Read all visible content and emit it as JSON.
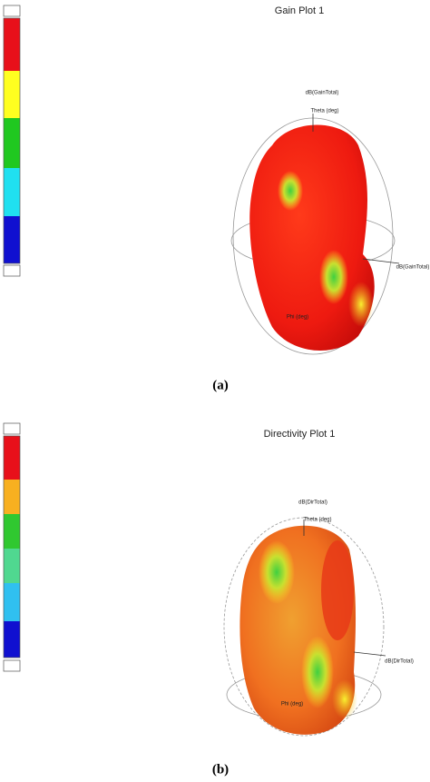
{
  "figures": [
    {
      "title": "Gain Plot 1",
      "quantity_label": "dB(GainTotal)",
      "theta_label": "Theta (deg)",
      "phi_label": "Phi (deg)",
      "caption": "(a)"
    },
    {
      "title": "Directivity Plot 1",
      "quantity_label": "dB(DirTotal)",
      "theta_label": "Theta (deg)",
      "phi_label": "Phi (deg)",
      "caption": "(b)"
    }
  ]
}
